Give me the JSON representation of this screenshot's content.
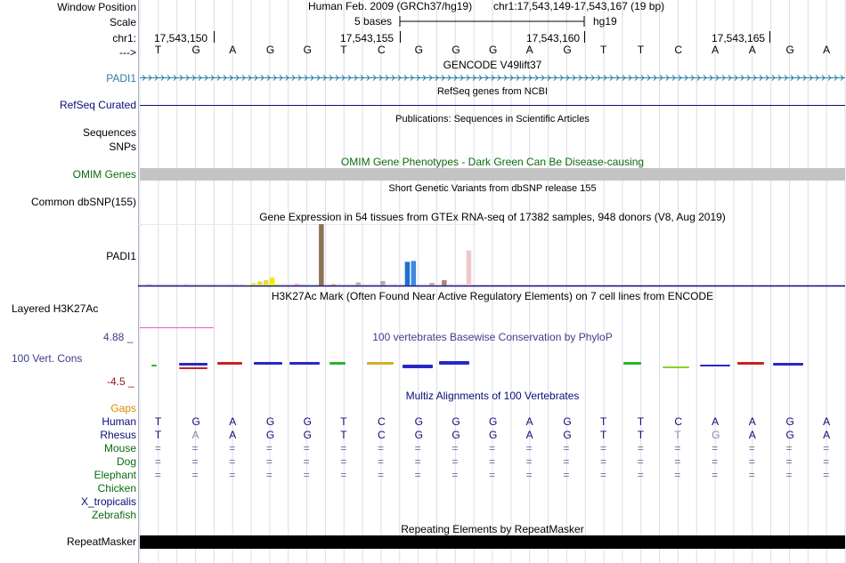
{
  "colors": {
    "padi1": "#2a7fa5",
    "refseq": "#0c0c78",
    "omim": "#0a6b10",
    "gaps": "#d98c00",
    "primate": "#0c0c78",
    "mammal": "#0a6b10",
    "vertCons": "#3c3c8c",
    "phyloPos": "#3c3c8c",
    "phyloNeg": "#8c1a1a",
    "repeat": "#000000",
    "omimBar": "#c4c4c4"
  },
  "header": {
    "window_label": "Window Position",
    "scale_label": "Scale",
    "chr_label": "chr1:",
    "arrow_label": "--->",
    "assembly": "Human Feb. 2009 (GRCh37/hg19)",
    "position": "chr1:17,543,149-17,543,167 (19 bp)",
    "scale_text": "5 bases",
    "db": "hg19",
    "ticks": [
      "17,543,150",
      "17,543,155",
      "17,543,160",
      "17,543,165"
    ]
  },
  "sequence": [
    "T",
    "G",
    "A",
    "G",
    "G",
    "T",
    "C",
    "G",
    "G",
    "G",
    "A",
    "G",
    "T",
    "T",
    "C",
    "A",
    "A",
    "G",
    "A"
  ],
  "tracks": {
    "gencode": {
      "title": "GENCODE V49lift37",
      "label": "PADI1"
    },
    "refseq": {
      "title": "RefSeq genes from NCBI",
      "label": "RefSeq Curated"
    },
    "publications": {
      "title": "Publications: Sequences in Scientific Articles",
      "label1": "Sequences",
      "label2": "SNPs"
    },
    "omim": {
      "title": "OMIM Gene Phenotypes - Dark Green Can Be Disease-causing",
      "label": "OMIM Genes"
    },
    "dbsnp": {
      "title": "Short Genetic Variants from dbSNP release 155",
      "label": "Common dbSNP(155)"
    },
    "gtex": {
      "title": "Gene Expression in 54 tissues from GTEx RNA-seq of 17382 samples, 948 donors (V8, Aug 2019)",
      "label": "PADI1"
    },
    "h3k27ac": {
      "title": "H3K27Ac Mark (Often Found Near Active Regulatory Elements) on 7 cell lines from ENCODE",
      "label": "Layered H3K27Ac"
    },
    "phylop": {
      "title": "100 vertebrates Basewise Conservation by PhyloP",
      "label": "100 Vert. Cons",
      "max_label": "4.88 _",
      "min_label": "-4.5 _"
    },
    "multiz": {
      "title": "Multiz Alignments of 100 Vertebrates",
      "gaps_label": "Gaps",
      "species": [
        {
          "name": "Human",
          "group": "primate",
          "bases": [
            "T",
            "G",
            "A",
            "G",
            "G",
            "T",
            "C",
            "G",
            "G",
            "G",
            "A",
            "G",
            "T",
            "T",
            "C",
            "A",
            "A",
            "G",
            "A"
          ]
        },
        {
          "name": "Rhesus",
          "group": "primate",
          "bases": [
            "T",
            "A",
            "A",
            "G",
            "G",
            "T",
            "C",
            "G",
            "G",
            "G",
            "A",
            "G",
            "T",
            "T",
            "T",
            "G",
            "A",
            "G",
            "A"
          ]
        },
        {
          "name": "Mouse",
          "group": "mammal",
          "bases": [
            "=",
            "=",
            "=",
            "=",
            "=",
            "=",
            "=",
            "=",
            "=",
            "=",
            "=",
            "=",
            "=",
            "=",
            "=",
            "=",
            "=",
            "=",
            "="
          ]
        },
        {
          "name": "Dog",
          "group": "mammal",
          "bases": [
            "=",
            "=",
            "=",
            "=",
            "=",
            "=",
            "=",
            "=",
            "=",
            "=",
            "=",
            "=",
            "=",
            "=",
            "=",
            "=",
            "=",
            "=",
            "="
          ]
        },
        {
          "name": "Elephant",
          "group": "mammal",
          "bases": [
            "=",
            "=",
            "=",
            "=",
            "=",
            "=",
            "=",
            "=",
            "=",
            "=",
            "=",
            "=",
            "=",
            "=",
            "=",
            "=",
            "=",
            "=",
            "="
          ]
        },
        {
          "name": "Chicken",
          "group": "mammal",
          "bases": []
        },
        {
          "name": "X_tropicalis",
          "group": "primate",
          "bases": []
        },
        {
          "name": "Zebrafish",
          "group": "mammal",
          "bases": []
        }
      ],
      "rhesus_mismatch": [
        1,
        14,
        15
      ]
    },
    "repeatmasker": {
      "title": "Repeating Elements by RepeatMasker",
      "label": "RepeatMasker"
    }
  },
  "chart_data": {
    "type": "bar",
    "title": "Gene Expression in 54 tissues from GTEx RNA-seq of 17382 samples, 948 donors (V8, Aug 2019)",
    "xlabel": "",
    "ylabel": "",
    "ylim": [
      0,
      70
    ],
    "values": [
      0.3,
      0.4,
      0.5,
      0.3,
      0.4,
      0.5,
      0.3,
      0.6,
      0.4,
      0.5,
      0.3,
      0.4,
      0.6,
      0.5,
      0.3,
      0.4,
      0.5,
      1.5,
      2.5,
      4.5,
      6,
      9,
      1,
      0.5,
      0.4,
      2,
      0.8,
      0.5,
      0.6,
      70,
      0.5,
      0.6,
      0.5,
      0.4,
      0.4,
      3.5,
      0.5,
      0.4,
      0.4,
      5,
      0.4,
      0.5,
      0.5,
      27,
      28,
      0.5,
      0.5,
      3,
      0.4,
      6,
      0.5,
      0.5,
      0.5,
      40
    ],
    "colors": [
      "#ccccdd",
      "#b3b3cc",
      "#ccccdd",
      "#d9c9b3",
      "#ccccdd",
      "#c9c9d9",
      "#ccccdd",
      "#d9b3b3",
      "#ccccdd",
      "#d9d9a0",
      "#ccccdd",
      "#c9c9d9",
      "#ccccdd",
      "#d9d9b3",
      "#ccccdd",
      "#d9c9b3",
      "#ccccdd",
      "#eeee88",
      "#dddd44",
      "#dddd44",
      "#dddd44",
      "#eeee00",
      "#dddd66",
      "#ccccdd",
      "#ccccdd",
      "#f0a0c0",
      "#ddbbcc",
      "#ccccdd",
      "#ccccdd",
      "#8b7355",
      "#ccccdd",
      "#cc9999",
      "#ccccdd",
      "#ccccdd",
      "#ccccdd",
      "#c8a8a0",
      "#ccccdd",
      "#ccccdd",
      "#ccccdd",
      "#aaaaaa",
      "#ccccdd",
      "#ccccdd",
      "#ccccdd",
      "#1f6fd0",
      "#3a8ae0",
      "#ccccdd",
      "#ccccdd",
      "#d9a0a0",
      "#ccccdd",
      "#b08070",
      "#ccccdd",
      "#ccccdd",
      "#ccccdd",
      "#f0c8c8"
    ]
  }
}
